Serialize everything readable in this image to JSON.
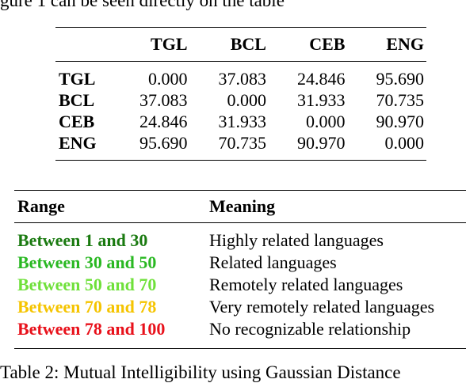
{
  "top_fragment": "gure 1 can be seen directly on the table",
  "bottom_fragment": "Table 2: Mutual Intelligibility using Gaussian Distance",
  "matrix": {
    "columns": [
      "TGL",
      "BCL",
      "CEB",
      "ENG"
    ],
    "rows": [
      {
        "label": "TGL",
        "values": [
          "0.000",
          "37.083",
          "24.846",
          "95.690"
        ]
      },
      {
        "label": "BCL",
        "values": [
          "37.083",
          "0.000",
          "31.933",
          "70.735"
        ]
      },
      {
        "label": "CEB",
        "values": [
          "24.846",
          "31.933",
          "0.000",
          "90.970"
        ]
      },
      {
        "label": "ENG",
        "values": [
          "95.690",
          "70.735",
          "90.970",
          "0.000"
        ]
      }
    ]
  },
  "ranges": {
    "header_range": "Range",
    "header_meaning": "Meaning",
    "rows": [
      {
        "range": "Between 1 and 30",
        "meaning": "Highly related languages",
        "color": "#1a7a10"
      },
      {
        "range": "Between 30 and 50",
        "meaning": "Related languages",
        "color": "#29b822"
      },
      {
        "range": "Between 50 and 70",
        "meaning": "Remotely related languages",
        "color": "#6fe03a"
      },
      {
        "range": "Between 70 and 78",
        "meaning": "Very remotely related languages",
        "color": "#f5c400"
      },
      {
        "range": "Between 78 and 100",
        "meaning": "No recognizable relationship",
        "color": "#e8111b"
      }
    ]
  }
}
